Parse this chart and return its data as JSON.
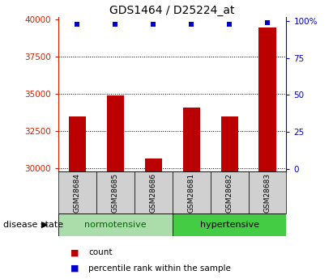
{
  "title": "GDS1464 / D25224_at",
  "samples": [
    "GSM28684",
    "GSM28685",
    "GSM28686",
    "GSM28681",
    "GSM28682",
    "GSM28683"
  ],
  "counts": [
    33500,
    34900,
    30700,
    34100,
    33500,
    39500
  ],
  "percentile_ranks": [
    98,
    98,
    98,
    98,
    98,
    99
  ],
  "ylim_left": [
    29800,
    40200
  ],
  "ylim_right": [
    -2,
    103
  ],
  "yticks_left": [
    30000,
    32500,
    35000,
    37500,
    40000
  ],
  "yticks_right": [
    0,
    25,
    50,
    75,
    100
  ],
  "bar_color": "#bb0000",
  "dot_color": "#0000cc",
  "normotensive_color": "#aaddaa",
  "hypertensive_color": "#44cc44",
  "normotensive_label": "normotensive",
  "hypertensive_label": "hypertensive",
  "disease_label": "disease state",
  "legend_count_label": "count",
  "legend_pct_label": "percentile rank within the sample",
  "left_tick_color": "#cc2200",
  "right_tick_color": "#0000cc",
  "title_fontsize": 10,
  "tick_fontsize": 7.5,
  "bar_width": 0.45
}
